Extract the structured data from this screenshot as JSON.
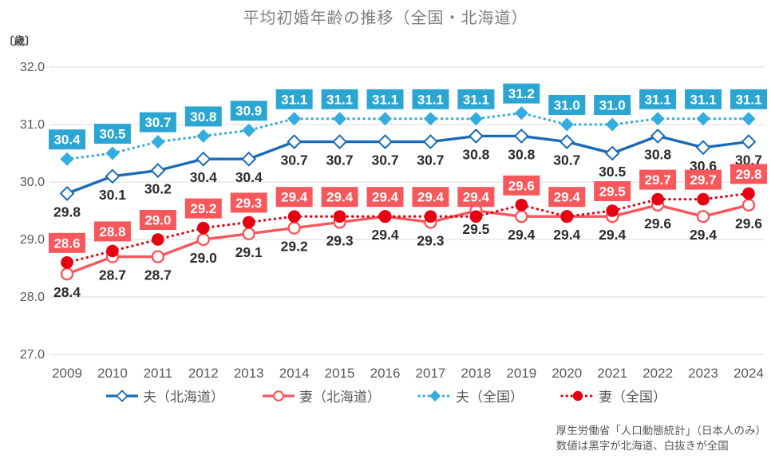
{
  "title": "平均初婚年齢の推移（全国・北海道）",
  "unit_label": "〔歳〕",
  "source": {
    "line1": "厚生労働省「人口動態統計」（日本人のみ）",
    "line2": "数値は黒字が北海道、白抜きが全国"
  },
  "colors": {
    "grid": "#d9d9d9",
    "axis_text": "#595959",
    "black_label": "#2b2b2b",
    "title_text": "#7f7f7f",
    "husband_hokkaido": "#1a6ab5",
    "wife_hokkaido": "#f8575b",
    "husband_national": "#33ace0",
    "husband_national_box": "#2ba6d3",
    "wife_national": "#e60012",
    "wife_national_box": "#f8575b"
  },
  "chart_data": {
    "type": "line",
    "title": "平均初婚年齢の推移（全国・北海道）",
    "xlabel": "",
    "ylabel": "〔歳〕",
    "ylim": [
      27.0,
      32.0
    ],
    "yticks": [
      "32.0",
      "31.0",
      "30.0",
      "29.0",
      "28.0",
      "27.0"
    ],
    "grid": "horizontal",
    "legend_position": "bottom",
    "x": [
      2009,
      2010,
      2011,
      2012,
      2013,
      2014,
      2015,
      2016,
      2017,
      2018,
      2019,
      2020,
      2021,
      2022,
      2023,
      2024
    ],
    "series": [
      {
        "key": "husband-hokkaido",
        "name": "夫（北海道）",
        "line": "solid",
        "marker": "diamond-open",
        "color": "#1a6ab5",
        "label_style": "black-below",
        "values": [
          29.8,
          30.1,
          30.2,
          30.4,
          30.4,
          30.7,
          30.7,
          30.7,
          30.7,
          30.8,
          30.8,
          30.7,
          30.5,
          30.8,
          30.6,
          30.7
        ]
      },
      {
        "key": "wife-hokkaido",
        "name": "妻（北海道）",
        "line": "solid",
        "marker": "circle-open",
        "color": "#f8575b",
        "label_style": "black-below",
        "values": [
          28.4,
          28.7,
          28.7,
          29.0,
          29.1,
          29.2,
          29.3,
          29.4,
          29.3,
          29.5,
          29.4,
          29.4,
          29.4,
          29.6,
          29.4,
          29.6
        ]
      },
      {
        "key": "husband-national",
        "name": "夫（全国）",
        "line": "dotted",
        "marker": "diamond-filled",
        "color": "#33ace0",
        "box_color": "#2ba6d3",
        "label_style": "box-above",
        "values": [
          30.4,
          30.5,
          30.7,
          30.8,
          30.9,
          31.1,
          31.1,
          31.1,
          31.1,
          31.1,
          31.2,
          31.0,
          31.0,
          31.1,
          31.1,
          31.1
        ]
      },
      {
        "key": "wife-national",
        "name": "妻（全国）",
        "line": "dotted",
        "marker": "circle-filled",
        "color": "#e60012",
        "box_color": "#f8575b",
        "label_style": "box-above",
        "values": [
          28.6,
          28.8,
          29.0,
          29.2,
          29.3,
          29.4,
          29.4,
          29.4,
          29.4,
          29.4,
          29.6,
          29.4,
          29.5,
          29.7,
          29.7,
          29.8
        ]
      }
    ]
  }
}
